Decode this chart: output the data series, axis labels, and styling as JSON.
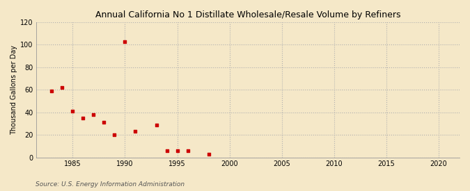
{
  "title": "Annual California No 1 Distillate Wholesale/Resale Volume by Refiners",
  "ylabel": "Thousand Gallons per Day",
  "source": "Source: U.S. Energy Information Administration",
  "background_color": "#f5e8c8",
  "plot_bg_color": "#f5e8c8",
  "grid_color": "#b0b0b0",
  "point_color": "#cc0000",
  "xlim": [
    1981.5,
    2022
  ],
  "ylim": [
    0,
    120
  ],
  "xticks": [
    1985,
    1990,
    1995,
    2000,
    2005,
    2010,
    2015,
    2020
  ],
  "yticks": [
    0,
    20,
    40,
    60,
    80,
    100,
    120
  ],
  "data_x": [
    1983,
    1984,
    1985,
    1986,
    1987,
    1988,
    1989,
    1990,
    1991,
    1993,
    1994,
    1995,
    1996,
    1998
  ],
  "data_y": [
    59,
    62,
    41,
    35,
    38,
    31,
    20,
    103,
    23,
    29,
    6,
    6,
    6,
    3
  ]
}
